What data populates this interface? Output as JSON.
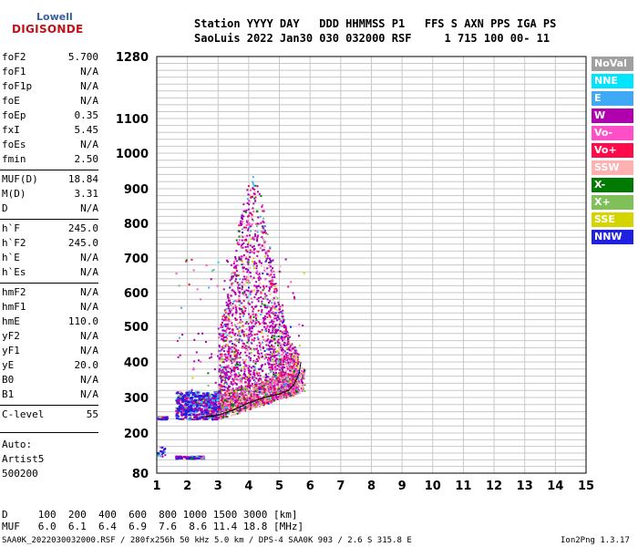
{
  "logo": {
    "top": "Lowell",
    "bottom": "DIGISONDE"
  },
  "header": {
    "line1": "Station YYYY DAY   DDD HHMMSS P1   FFS S AXN PPS IGA PS",
    "line2": "SaoLuis 2022 Jan30 030 032000 RSF     1 715 100 00- 11"
  },
  "params": [
    {
      "name": "foF2",
      "value": "5.700"
    },
    {
      "name": "foF1",
      "value": "N/A"
    },
    {
      "name": "foF1p",
      "value": "N/A"
    },
    {
      "name": "foE",
      "value": "N/A"
    },
    {
      "name": "foEp",
      "value": "0.35"
    },
    {
      "name": "fxI",
      "value": "5.45"
    },
    {
      "name": "foEs",
      "value": "N/A"
    },
    {
      "name": "fmin",
      "value": "2.50"
    },
    {
      "name": "MUF(D)",
      "value": "18.84"
    },
    {
      "name": "M(D)",
      "value": "3.31"
    },
    {
      "name": "D",
      "value": "N/A"
    },
    {
      "name": "h`F",
      "value": "245.0"
    },
    {
      "name": "h`F2",
      "value": "245.0"
    },
    {
      "name": "h`E",
      "value": "N/A"
    },
    {
      "name": "h`Es",
      "value": "N/A"
    },
    {
      "name": "hmF2",
      "value": "N/A"
    },
    {
      "name": "hmF1",
      "value": "N/A"
    },
    {
      "name": "hmE",
      "value": "110.0"
    },
    {
      "name": "yF2",
      "value": "N/A"
    },
    {
      "name": "yF1",
      "value": "N/A"
    },
    {
      "name": "yE",
      "value": "20.0"
    },
    {
      "name": "B0",
      "value": "N/A"
    },
    {
      "name": "B1",
      "value": "N/A"
    },
    {
      "name": "C-level",
      "value": "55"
    }
  ],
  "auto": {
    "line1": "Auto:",
    "line2": "Artist5",
    "line3": "500200"
  },
  "legend": [
    {
      "label": "NoVal",
      "color": "#a0a0a0"
    },
    {
      "label": "NNE",
      "color": "#00e5ff"
    },
    {
      "label": "E",
      "color": "#3fa9f5"
    },
    {
      "label": "W",
      "color": "#b000b0"
    },
    {
      "label": "Vo-",
      "color": "#ff4fc8"
    },
    {
      "label": "Vo+",
      "color": "#ff0a4a"
    },
    {
      "label": "SSW",
      "color": "#ffb0b0"
    },
    {
      "label": "X-",
      "color": "#007a00"
    },
    {
      "label": "X+",
      "color": "#7fc05a"
    },
    {
      "label": "SSE",
      "color": "#d4d400"
    },
    {
      "label": "NNW",
      "color": "#2020e0"
    }
  ],
  "footer": {
    "dline": "D     100  200  400  600  800 1000 1500 3000 [km]",
    "mufline": "MUF   6.0  6.1  6.4  6.9  7.6  8.6 11.4 18.8 [MHz]",
    "fileinfo": "SAA0K_2022030032000.RSF / 280fx256h 50 kHz 5.0 km / DPS-4 SAA0K 903 / 2.6 S 315.8 E",
    "version": "Ion2Png 1.3.17"
  },
  "chart_data": {
    "type": "scatter",
    "title": "",
    "xlabel": "",
    "ylabel": "",
    "xlim": [
      1,
      15
    ],
    "ylim": [
      80,
      1280
    ],
    "y_scale": "nonlinear (ionogram virtual height axis)",
    "x_ticks": [
      1,
      2,
      3,
      4,
      5,
      6,
      7,
      8,
      9,
      10,
      11,
      12,
      13,
      14,
      15
    ],
    "y_ticks": [
      80,
      200,
      300,
      400,
      500,
      600,
      700,
      800,
      900,
      1000,
      1100,
      1280
    ],
    "grid": true,
    "legend_position": "right",
    "trace": {
      "name": "F2 trace",
      "x": [
        2.5,
        3.0,
        3.5,
        4.0,
        4.5,
        5.0,
        5.3,
        5.5,
        5.65,
        5.7
      ],
      "y": [
        245,
        250,
        265,
        285,
        300,
        310,
        320,
        340,
        370,
        400
      ]
    }
  }
}
